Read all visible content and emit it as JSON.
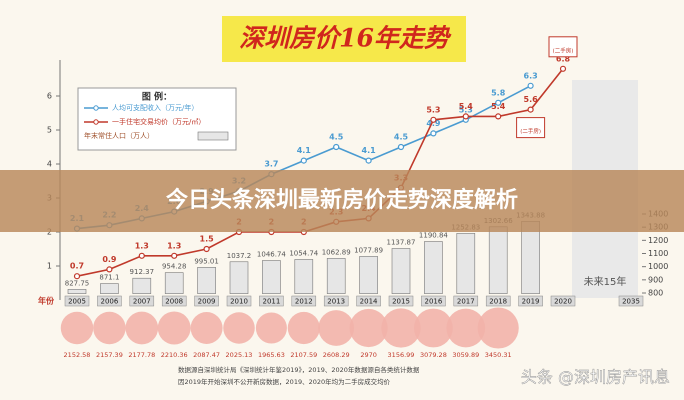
{
  "chart_data": {
    "type": "combo",
    "title": "深圳房价16年走势",
    "legend_title": "图 例：",
    "categories": [
      "2005",
      "2006",
      "2007",
      "2008",
      "2009",
      "2010",
      "2011",
      "2012",
      "2013",
      "2014",
      "2015",
      "2016",
      "2017",
      "2018",
      "2019",
      "2020"
    ],
    "x_label": "年份",
    "future_label": "2035",
    "future_note": "未来15年",
    "ylim": [
      0,
      7
    ],
    "yticks": [
      1,
      2,
      3,
      4,
      5,
      6
    ],
    "y2lim": [
      750,
      1450
    ],
    "y2ticks": [
      800,
      900,
      1000,
      1100,
      1200,
      1300,
      1400
    ],
    "series": [
      {
        "name": "人均可支配收入（万元/年）",
        "type": "line",
        "color": "#4a9bd1",
        "values": [
          2.1,
          2.2,
          2.4,
          2.6,
          2.9,
          3.2,
          3.7,
          4.1,
          4.5,
          4.1,
          4.5,
          4.9,
          5.3,
          5.8,
          6.3,
          null
        ]
      },
      {
        "name": "一手住宅交易均价（万元/㎡）",
        "type": "line",
        "color": "#c0392b",
        "values": [
          0.7,
          0.9,
          1.3,
          1.3,
          1.5,
          2.0,
          2.0,
          2.0,
          2.3,
          2.4,
          3.3,
          5.3,
          5.4,
          5.4,
          5.6,
          6.8
        ]
      },
      {
        "name": "年末常住人口（万人）",
        "type": "bar",
        "axis": "y2",
        "color": "#e6e6e6",
        "values": [
          827.75,
          871.1,
          912.37,
          954.28,
          995.01,
          1037.2,
          1046.74,
          1054.74,
          1062.89,
          1077.89,
          1137.87,
          1190.84,
          1252.83,
          1302.66,
          1343.88,
          null
        ]
      },
      {
        "type": "bubble",
        "color": "#f2b3aa",
        "values": [
          2152.58,
          2157.39,
          2177.78,
          2210.36,
          2087.47,
          2025.13,
          1965.63,
          2107.59,
          2608.29,
          2970,
          3156.99,
          3079.28,
          3059.89,
          3450.31,
          null,
          null
        ]
      }
    ],
    "annotation": "(二手房)",
    "banner": "今日头条深圳最新房价走势深度解析",
    "footnotes": [
      "数据源自深圳统计局《深圳统计年鉴2019》，2019、2020年数据源自各类统计数据",
      "因2019年开始深圳不公开新房数据，2019、2020年均为二手房成交均价"
    ],
    "watermark": "头条 @深圳房产讯息"
  }
}
